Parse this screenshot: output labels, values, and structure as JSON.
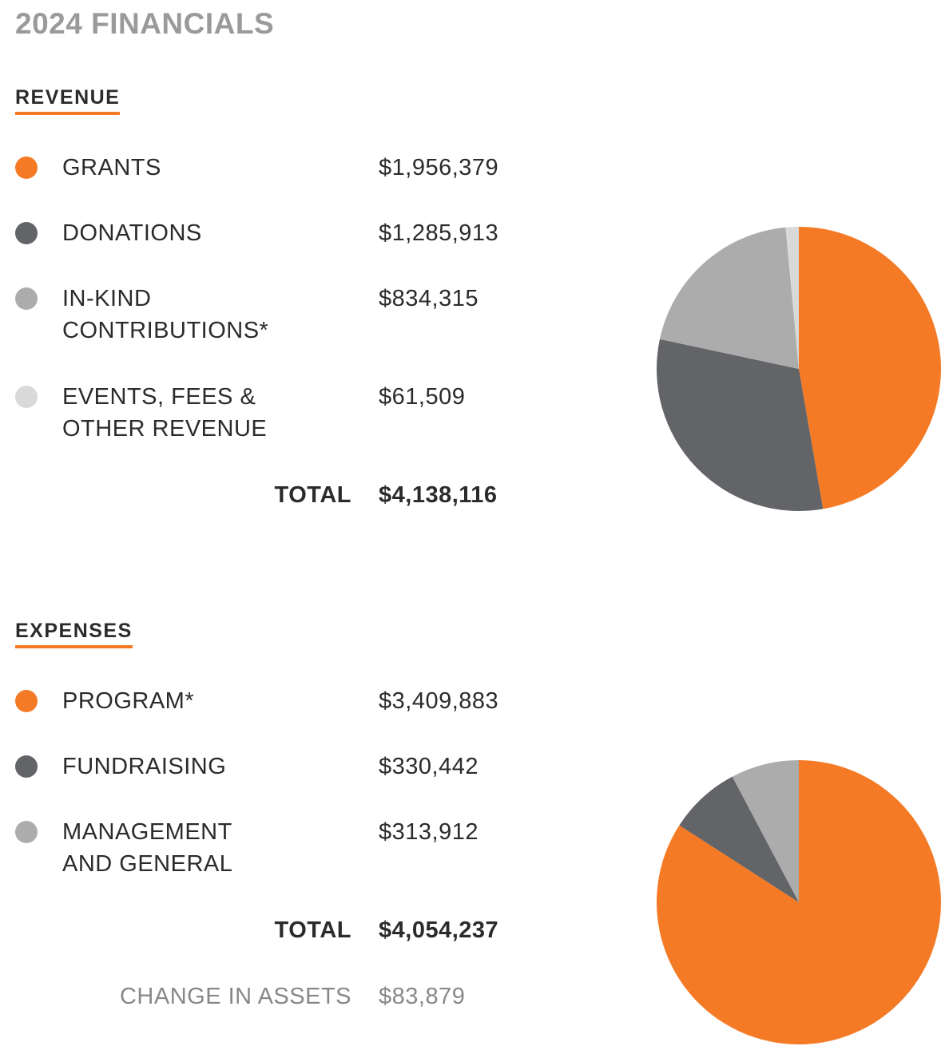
{
  "title": "2024 FINANCIALS",
  "chart_data": [
    {
      "type": "pie",
      "title": "REVENUE",
      "categories": [
        "GRANTS",
        "DONATIONS",
        "IN-KIND CONTRIBUTIONS*",
        "EVENTS, FEES & OTHER REVENUE"
      ],
      "values": [
        1956379,
        1285913,
        834315,
        61509
      ],
      "value_labels": [
        "$1,956,379",
        "$1,285,913",
        "$834,315",
        "$61,509"
      ],
      "colors": [
        "#f47a25",
        "#636468",
        "#acacac",
        "#d9d9d9"
      ],
      "total_label": "TOTAL",
      "total": "$4,138,116"
    },
    {
      "type": "pie",
      "title": "EXPENSES",
      "categories": [
        "PROGRAM*",
        "FUNDRAISING",
        "MANAGEMENT AND GENERAL"
      ],
      "values": [
        3409883,
        330442,
        313912
      ],
      "value_labels": [
        "$3,409,883",
        "$330,442",
        "$313,912"
      ],
      "colors": [
        "#f47a25",
        "#636468",
        "#acacac"
      ],
      "total_label": "TOTAL",
      "total": "$4,054,237",
      "change_label": "CHANGE IN ASSETS",
      "change": "$83,879"
    }
  ]
}
